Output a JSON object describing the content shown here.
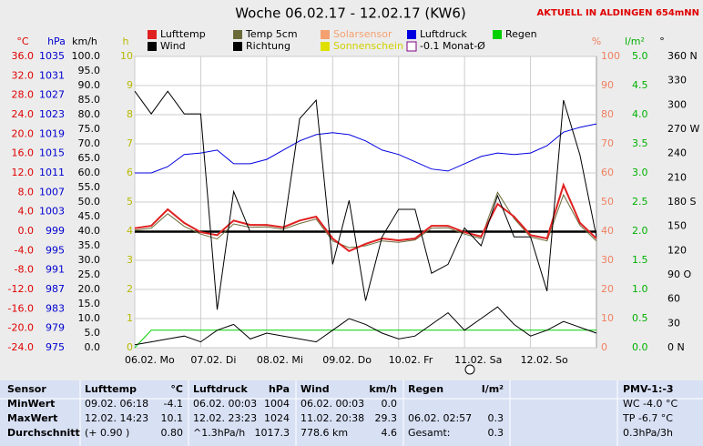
{
  "chart_data": {
    "type": "line",
    "title": "Woche 06.02.17 - 12.02.17 (KW6)",
    "subtitle": "AKTUELL IN ALDINGEN 654mNN",
    "x": [
      0,
      6,
      12,
      18,
      24,
      30,
      36,
      42,
      48,
      54,
      60,
      66,
      72,
      78,
      84,
      90,
      96,
      102,
      108,
      114,
      120,
      126,
      132,
      138,
      144,
      150,
      156,
      162,
      168
    ],
    "xlim": [
      0,
      168
    ],
    "xticks": [
      {
        "value": 0,
        "label": "06.02. Mo"
      },
      {
        "value": 24,
        "label": "07.02. Di"
      },
      {
        "value": 48,
        "label": "08.02. Mi"
      },
      {
        "value": 72,
        "label": "09.02. Do"
      },
      {
        "value": 96,
        "label": "10.02. Fr"
      },
      {
        "value": 120,
        "label": "11.02. Sa"
      },
      {
        "value": 144,
        "label": "12.02. So"
      }
    ],
    "grid": true,
    "axes": [
      {
        "label": "°C",
        "color": "#e00000",
        "lim": [
          -24,
          36
        ],
        "ticks": [
          {
            "value": 36,
            "label": "36.0"
          },
          {
            "value": 32,
            "label": "32.0"
          },
          {
            "value": 28,
            "label": "28.0"
          },
          {
            "value": 24,
            "label": "24.0"
          },
          {
            "value": 20,
            "label": "20.0"
          },
          {
            "value": 16,
            "label": "16.0"
          },
          {
            "value": 12,
            "label": "12.0"
          },
          {
            "value": 8,
            "label": "8.0"
          },
          {
            "value": 4,
            "label": "4.0"
          },
          {
            "value": 0,
            "label": "0.0"
          },
          {
            "value": -4,
            "label": "-4.0"
          },
          {
            "value": -8,
            "label": "-8.0"
          },
          {
            "value": -12,
            "label": "-12.0"
          },
          {
            "value": -16,
            "label": "-16.0"
          },
          {
            "value": -20,
            "label": "-20.0"
          },
          {
            "value": -24,
            "label": "-24.0"
          }
        ]
      },
      {
        "label": "hPa",
        "color": "#0000d0",
        "lim": [
          975,
          1035
        ],
        "ticks": [
          1035,
          1031,
          1027,
          1023,
          1019,
          1015,
          1011,
          1007,
          1003,
          999,
          995,
          991,
          987,
          983,
          979,
          975
        ]
      },
      {
        "label": "km/h",
        "color": "#000000",
        "lim": [
          0,
          100
        ],
        "ticks": [
          {
            "value": 100,
            "label": "100.0"
          },
          {
            "value": 95,
            "label": "95.0"
          },
          {
            "value": 90,
            "label": "90.0"
          },
          {
            "value": 85,
            "label": "85.0"
          },
          {
            "value": 80,
            "label": "80.0"
          },
          {
            "value": 75,
            "label": "75.0"
          },
          {
            "value": 70,
            "label": "70.0"
          },
          {
            "value": 65,
            "label": "65.0"
          },
          {
            "value": 60,
            "label": "60.0"
          },
          {
            "value": 55,
            "label": "55.0"
          },
          {
            "value": 50,
            "label": "50.0"
          },
          {
            "value": 45,
            "label": "45.0"
          },
          {
            "value": 40,
            "label": "40.0"
          },
          {
            "value": 35,
            "label": "35.0"
          },
          {
            "value": 30,
            "label": "30.0"
          },
          {
            "value": 25,
            "label": "25.0"
          },
          {
            "value": 20,
            "label": "20.0"
          },
          {
            "value": 15,
            "label": "15.0"
          },
          {
            "value": 10,
            "label": "10.0"
          },
          {
            "value": 5,
            "label": "5.0"
          },
          {
            "value": 0,
            "label": "0.0"
          }
        ]
      },
      {
        "label": "h",
        "color": "#b8b800",
        "lim": [
          0,
          10
        ],
        "ticks": [
          10,
          9,
          8,
          7,
          6,
          5,
          4,
          3,
          2,
          1,
          0
        ]
      },
      {
        "label": "%",
        "color": "#f08060",
        "lim": [
          0,
          100
        ],
        "ticks": [
          100,
          90,
          80,
          70,
          60,
          50,
          40,
          30,
          20,
          10,
          0
        ]
      },
      {
        "label": "l/m²",
        "color": "#00b000",
        "lim": [
          0,
          5
        ],
        "ticks": [
          {
            "value": 5,
            "label": "5.0"
          },
          4.5,
          {
            "value": 4,
            "label": "4.0"
          },
          3.5,
          {
            "value": 3,
            "label": "3.0"
          },
          2.5,
          {
            "value": 2,
            "label": "2.0"
          },
          1.5,
          {
            "value": 1,
            "label": "1.0"
          },
          0.5,
          {
            "value": 0,
            "label": "0.0"
          }
        ]
      },
      {
        "label": "°",
        "color": "#000000",
        "lim": [
          0,
          360
        ],
        "ticks": [
          {
            "value": 360,
            "label": "360 N"
          },
          330,
          300,
          {
            "value": 270,
            "label": "270 W"
          },
          240,
          210,
          {
            "value": 180,
            "label": "180 S"
          },
          150,
          120,
          {
            "value": 90,
            "label": "90 O"
          },
          60,
          30,
          {
            "value": 0,
            "label": "0 N"
          }
        ]
      }
    ],
    "series": [
      {
        "name": "Lufttemp",
        "color": "#e02020",
        "axis": "°C",
        "width": 2,
        "values": [
          0.6,
          1.1,
          4.5,
          1.7,
          -0.2,
          -0.8,
          2.2,
          1.3,
          1.3,
          0.8,
          2.2,
          3.0,
          -1.5,
          -4.1,
          -2.6,
          -1.5,
          -1.9,
          -1.5,
          1.1,
          1.1,
          -0.2,
          -1.1,
          5.6,
          3.0,
          -0.8,
          -1.5,
          9.5,
          1.7,
          -1.5
        ]
      },
      {
        "name": "Temp 5cm",
        "color": "#6b6b3a",
        "axis": "°C",
        "width": 1,
        "values": [
          0.2,
          0.6,
          3.6,
          1.0,
          -0.6,
          -1.6,
          1.5,
          0.8,
          0.9,
          0.4,
          1.6,
          2.5,
          -2.0,
          -3.4,
          -3.0,
          -2.0,
          -2.3,
          -1.8,
          0.6,
          0.7,
          -0.6,
          -1.5,
          8.0,
          2.6,
          -1.2,
          -2.0,
          7.5,
          1.2,
          -2.0
        ]
      },
      {
        "name": "Solarsensor",
        "color": "#f4a070",
        "label_color": "#f4a070"
      },
      {
        "name": "Luftdruck",
        "color": "#0000e0",
        "axis": "hPa",
        "width": 1,
        "values": [
          1011,
          1011,
          1012.3,
          1014.8,
          1015.1,
          1015.7,
          1012.9,
          1012.9,
          1013.8,
          1015.7,
          1017.6,
          1018.9,
          1019.3,
          1018.9,
          1017.6,
          1015.7,
          1014.8,
          1013.3,
          1011.8,
          1011.4,
          1012.9,
          1014.4,
          1015.1,
          1014.8,
          1015.1,
          1016.6,
          1019.4,
          1020.4,
          1021.1
        ]
      },
      {
        "name": "Regen",
        "color": "#00d000",
        "axis": "l/m²",
        "width": 1,
        "values": [
          0,
          0.3,
          0.3,
          0.3,
          0.3,
          0.3,
          0.3,
          0.3,
          0.3,
          0.3,
          0.3,
          0.3,
          0.3,
          0.3,
          0.3,
          0.3,
          0.3,
          0.3,
          0.3,
          0.3,
          0.3,
          0.3,
          0.3,
          0.3,
          0.3,
          0.3,
          0.3,
          0.3,
          0.3
        ]
      },
      {
        "name": "Wind",
        "color": "#000000",
        "axis": "km/h",
        "width": 1,
        "values": [
          1,
          2,
          3,
          4,
          2,
          6,
          8,
          3,
          5,
          4,
          3,
          2,
          6,
          10,
          8,
          5,
          3,
          4,
          8,
          12,
          6,
          10,
          14,
          8,
          4,
          6,
          9,
          7,
          5
        ]
      },
      {
        "name": "Richtung",
        "color": "#000000",
        "axis": "°",
        "width": 1,
        "values": [
          317,
          289,
          317,
          289,
          289,
          47,
          193,
          143,
          143,
          143,
          283,
          306,
          103,
          182,
          58,
          137,
          171,
          171,
          92,
          103,
          148,
          126,
          188,
          137,
          137,
          70,
          306,
          238,
          137
        ]
      },
      {
        "name": "Sonnenschein",
        "color": "#e0e000",
        "label_color": "#d0d000"
      },
      {
        "name": "-0.1 Monat-Ø",
        "color": "#000000",
        "axis": "°C",
        "width": 2.5,
        "value": -0.1
      }
    ]
  },
  "stats_table": {
    "header": [
      "Sensor",
      "Lufttemp",
      "°C",
      "Luftdruck",
      "hPa",
      "Wind",
      "km/h",
      "Regen",
      "l/m²",
      "PMV-1:-3"
    ],
    "rows": [
      [
        "MinWert",
        "09.02.  06:18",
        "-4.1",
        "06.02.  00:03",
        "1004",
        "06.02.  00:03",
        "0.0",
        null,
        null,
        "WC -4.0 °C"
      ],
      [
        "MaxWert",
        "12.02.  14:23",
        "10.1",
        "12.02.  23:23",
        "1024",
        "11.02.  20:38",
        "29.3",
        "06.02.  02:57",
        "0.3",
        "TP -6.7 °C"
      ],
      [
        "Durchschnitt",
        "(+ 0.90 )",
        "0.80",
        "^1.3hPa/h",
        "1017.3",
        "778.6 km",
        "4.6",
        "Gesamt:",
        "0.3",
        "0.3hPa/3h"
      ]
    ]
  }
}
